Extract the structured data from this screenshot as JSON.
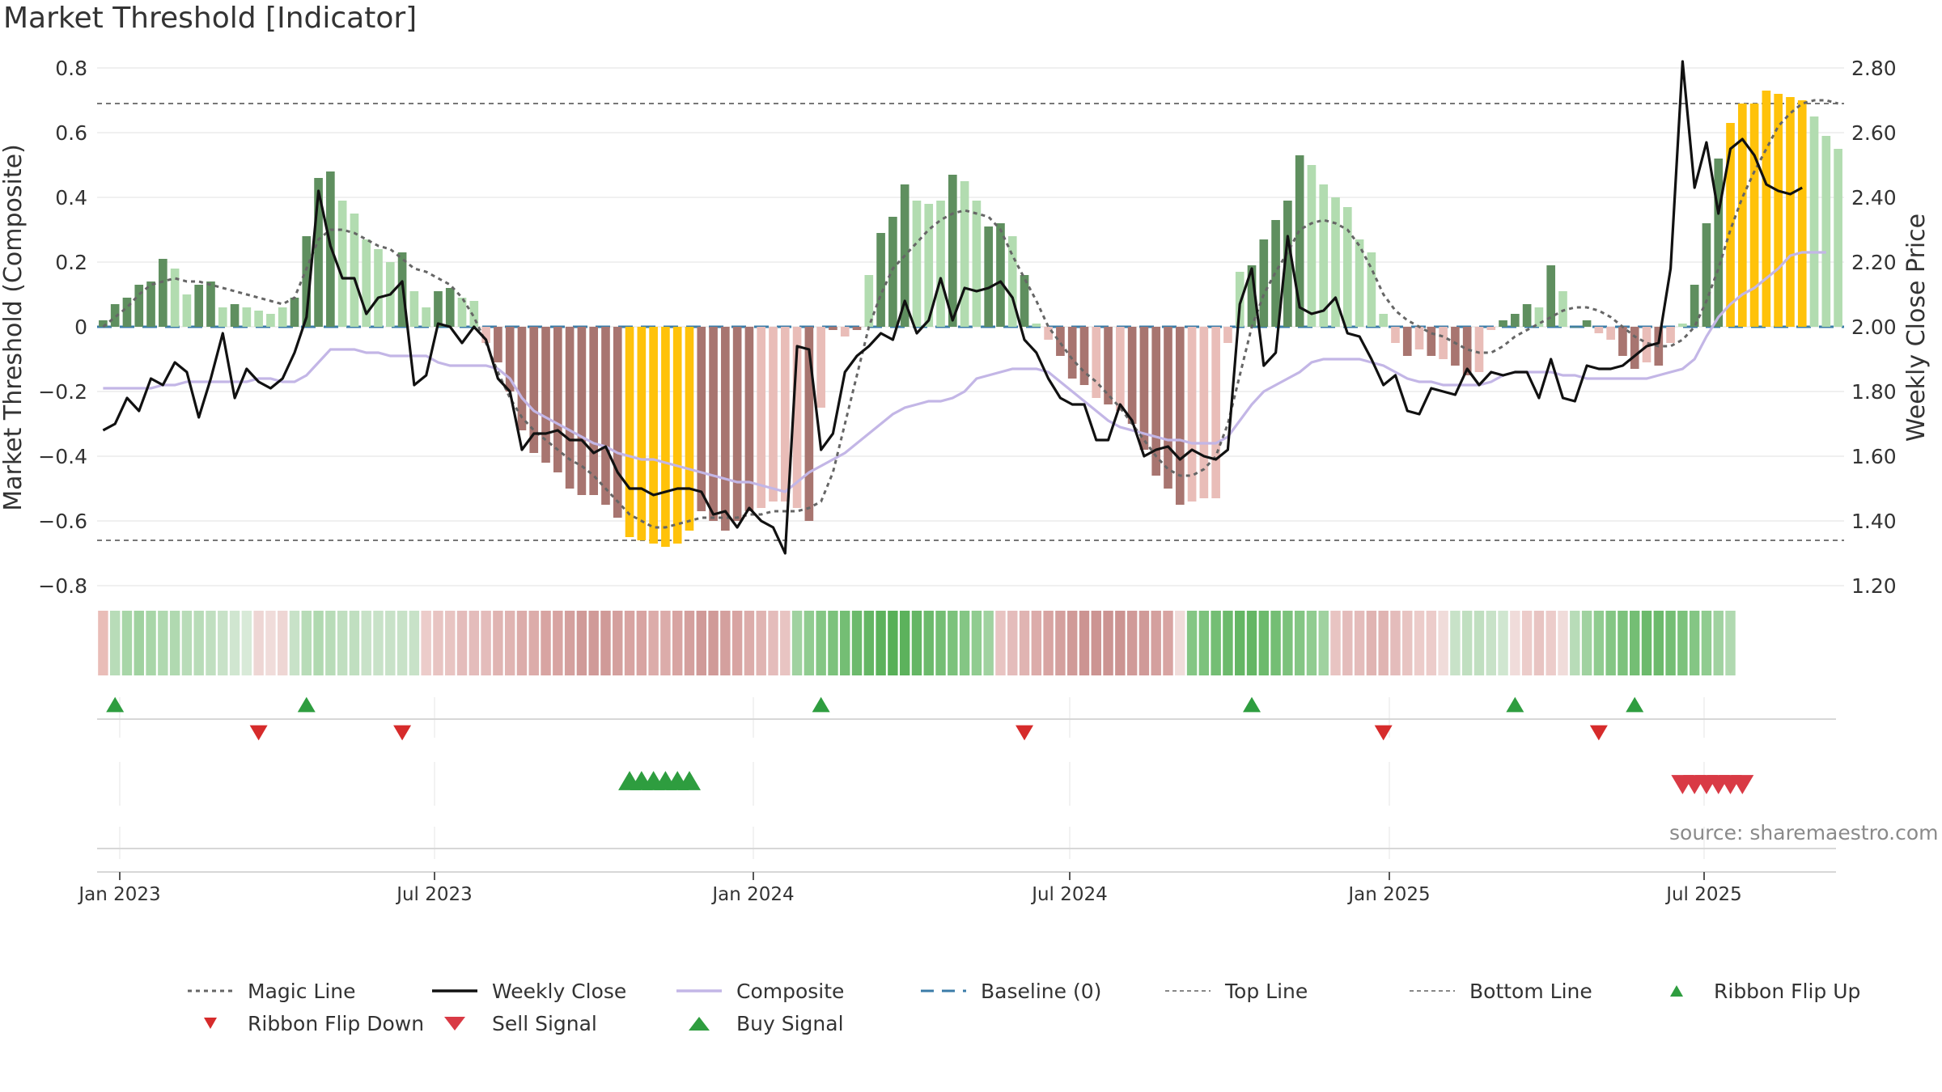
{
  "title": "Market Threshold [Indicator]",
  "source": "source: sharemaestro.com",
  "colors": {
    "pos_strong": "#5f8f5f",
    "pos_light": "#b2dcb0",
    "neg_strong": "#a87570",
    "neg_light": "#e9bdb8",
    "extreme": "#ffc20a",
    "close": "#111111",
    "composite": "#c3b6e6",
    "magic": "#666666",
    "baseline": "#3b7ca8",
    "ribbon_up": "#2e9d3f",
    "ribbon_down": "#d62b2b",
    "buy": "#2e9d3f",
    "sell": "#d93a45"
  },
  "chart_data": {
    "type": "bar",
    "title": "Market Threshold [Indicator]",
    "ylabel_left": "Market Threshold (Composite)",
    "ylabel_right": "Weekly Close Price",
    "ylim_left": [
      -0.8,
      0.8
    ],
    "ylim_right": [
      1.2,
      2.9
    ],
    "left_ticks": [
      "0.8",
      "0.6",
      "0.4",
      "0.2",
      "0",
      "−0.2",
      "−0.4",
      "−0.6",
      "−0.8"
    ],
    "right_ticks": [
      "2.80",
      "2.60",
      "2.40",
      "2.20",
      "2.00",
      "1.80",
      "1.60",
      "1.40",
      "1.20"
    ],
    "x_ticks": [
      "Jan 2023",
      "Jul 2023",
      "Jan 2024",
      "Jul 2024",
      "Jan 2025",
      "Jul 2025"
    ],
    "top_line": 0.69,
    "bottom_line": -0.66,
    "baseline": 0,
    "magnitude": [
      0.02,
      0.07,
      0.09,
      0.13,
      0.14,
      0.21,
      0.18,
      0.1,
      0.13,
      0.14,
      0.06,
      0.07,
      0.06,
      0.05,
      0.04,
      0.06,
      0.09,
      0.28,
      0.46,
      0.48,
      0.39,
      0.35,
      0.27,
      0.24,
      0.2,
      0.23,
      0.11,
      0.06,
      0.11,
      0.12,
      0.09,
      0.08,
      -0.05,
      -0.11,
      -0.2,
      -0.32,
      -0.39,
      -0.42,
      -0.45,
      -0.5,
      -0.52,
      -0.52,
      -0.55,
      -0.59,
      -0.65,
      -0.66,
      -0.67,
      -0.68,
      -0.67,
      -0.63,
      -0.57,
      -0.6,
      -0.63,
      -0.6,
      -0.57,
      -0.56,
      -0.54,
      -0.54,
      -0.56,
      -0.6,
      -0.25,
      -0.01,
      -0.03,
      -0.01,
      0.16,
      0.29,
      0.34,
      0.44,
      0.39,
      0.38,
      0.39,
      0.47,
      0.45,
      0.39,
      0.31,
      0.32,
      0.28,
      0.16,
      0.01,
      -0.04,
      -0.09,
      -0.16,
      -0.18,
      -0.22,
      -0.24,
      -0.26,
      -0.3,
      -0.38,
      -0.46,
      -0.5,
      -0.55,
      -0.54,
      -0.53,
      -0.53,
      -0.05,
      0.17,
      0.19,
      0.27,
      0.33,
      0.39,
      0.53,
      0.5,
      0.44,
      0.4,
      0.37,
      0.27,
      0.23,
      0.04,
      -0.05,
      -0.09,
      -0.07,
      -0.09,
      -0.1,
      -0.12,
      -0.15,
      -0.14,
      -0.01,
      0.02,
      0.04,
      0.07,
      0.06,
      0.19,
      0.11,
      0.0,
      0.02,
      -0.02,
      -0.04,
      -0.09,
      -0.13,
      -0.11,
      -0.12,
      -0.05,
      0.01,
      0.13,
      0.32,
      0.52,
      0.63,
      0.69,
      0.69,
      0.73,
      0.72,
      0.71,
      0.7,
      0.65,
      0.59,
      0.55
    ],
    "bar_category": [
      "ps",
      "ps",
      "ps",
      "ps",
      "ps",
      "ps",
      "pl",
      "pl",
      "ps",
      "ps",
      "pl",
      "ps",
      "pl",
      "pl",
      "pl",
      "pl",
      "ps",
      "ps",
      "ps",
      "ps",
      "pl",
      "pl",
      "pl",
      "pl",
      "pl",
      "ps",
      "pl",
      "pl",
      "ps",
      "ps",
      "pl",
      "pl",
      "nl",
      "ns",
      "ns",
      "ns",
      "ns",
      "ns",
      "ns",
      "ns",
      "ns",
      "ns",
      "ns",
      "ns",
      "ex",
      "ex",
      "ex",
      "ex",
      "ex",
      "ex",
      "ns",
      "ns",
      "ns",
      "ns",
      "ns",
      "nl",
      "nl",
      "nl",
      "nl",
      "ns",
      "nl",
      "ns",
      "nl",
      "ns",
      "pl",
      "ps",
      "ps",
      "ps",
      "pl",
      "pl",
      "pl",
      "ps",
      "pl",
      "pl",
      "ps",
      "ps",
      "pl",
      "ps",
      "pl",
      "nl",
      "ns",
      "ns",
      "ns",
      "nl",
      "ns",
      "nl",
      "ns",
      "ns",
      "ns",
      "ns",
      "ns",
      "nl",
      "nl",
      "nl",
      "nl",
      "pl",
      "ps",
      "ps",
      "ps",
      "ps",
      "ps",
      "pl",
      "pl",
      "pl",
      "pl",
      "pl",
      "pl",
      "pl",
      "nl",
      "ns",
      "nl",
      "ns",
      "nl",
      "ns",
      "ns",
      "nl",
      "nl",
      "ps",
      "ps",
      "ps",
      "pl",
      "ps",
      "pl",
      "ps",
      "ps",
      "nl",
      "nl",
      "ns",
      "ns",
      "nl",
      "ns",
      "nl",
      "pl",
      "ps",
      "ps",
      "ps",
      "ex",
      "ex",
      "ex",
      "ex",
      "ex",
      "ex",
      "ex",
      "pl",
      "pl",
      "pl"
    ],
    "series": [
      {
        "name": "Magic Line",
        "values": [
          0.0,
          0.03,
          0.06,
          0.1,
          0.13,
          0.14,
          0.15,
          0.14,
          0.14,
          0.13,
          0.12,
          0.11,
          0.1,
          0.09,
          0.08,
          0.07,
          0.09,
          0.18,
          0.27,
          0.3,
          0.3,
          0.29,
          0.27,
          0.25,
          0.24,
          0.21,
          0.18,
          0.17,
          0.15,
          0.13,
          0.09,
          0.03,
          -0.05,
          -0.14,
          -0.22,
          -0.28,
          -0.32,
          -0.35,
          -0.38,
          -0.41,
          -0.43,
          -0.46,
          -0.5,
          -0.54,
          -0.58,
          -0.6,
          -0.62,
          -0.62,
          -0.61,
          -0.6,
          -0.59,
          -0.59,
          -0.59,
          -0.59,
          -0.58,
          -0.58,
          -0.57,
          -0.57,
          -0.57,
          -0.56,
          -0.54,
          -0.45,
          -0.3,
          -0.15,
          0.0,
          0.1,
          0.18,
          0.22,
          0.26,
          0.3,
          0.33,
          0.35,
          0.36,
          0.35,
          0.34,
          0.3,
          0.22,
          0.15,
          0.08,
          0.0,
          -0.05,
          -0.1,
          -0.14,
          -0.17,
          -0.21,
          -0.25,
          -0.3,
          -0.35,
          -0.4,
          -0.44,
          -0.46,
          -0.46,
          -0.44,
          -0.4,
          -0.3,
          -0.15,
          0.0,
          0.1,
          0.17,
          0.23,
          0.3,
          0.32,
          0.33,
          0.32,
          0.3,
          0.25,
          0.18,
          0.1,
          0.05,
          0.02,
          0.0,
          -0.02,
          -0.03,
          -0.05,
          -0.07,
          -0.08,
          -0.08,
          -0.06,
          -0.03,
          -0.01,
          0.01,
          0.03,
          0.05,
          0.06,
          0.06,
          0.05,
          0.03,
          0.0,
          -0.03,
          -0.05,
          -0.06,
          -0.06,
          -0.04,
          0.0,
          0.08,
          0.18,
          0.3,
          0.4,
          0.48,
          0.55,
          0.62,
          0.66,
          0.69,
          0.7,
          0.7,
          0.69
        ]
      },
      {
        "name": "Weekly Close",
        "values": [
          1.68,
          1.7,
          1.78,
          1.74,
          1.84,
          1.82,
          1.89,
          1.86,
          1.72,
          1.84,
          1.98,
          1.78,
          1.87,
          1.83,
          1.81,
          1.84,
          1.92,
          2.03,
          2.42,
          2.25,
          2.15,
          2.15,
          2.04,
          2.09,
          2.1,
          2.14,
          1.82,
          1.85,
          2.01,
          2.0,
          1.95,
          2.0,
          1.96,
          1.84,
          1.8,
          1.62,
          1.67,
          1.67,
          1.68,
          1.65,
          1.65,
          1.61,
          1.63,
          1.55,
          1.5,
          1.5,
          1.48,
          1.49,
          1.5,
          1.5,
          1.49,
          1.42,
          1.43,
          1.38,
          1.44,
          1.4,
          1.38,
          1.3,
          1.94,
          1.93,
          1.62,
          1.67,
          1.86,
          1.91,
          1.94,
          1.98,
          1.96,
          2.08,
          1.98,
          2.02,
          2.15,
          2.02,
          2.12,
          2.11,
          2.12,
          2.14,
          2.09,
          1.96,
          1.92,
          1.84,
          1.78,
          1.76,
          1.76,
          1.65,
          1.65,
          1.76,
          1.71,
          1.6,
          1.62,
          1.63,
          1.59,
          1.62,
          1.6,
          1.59,
          1.62,
          2.07,
          2.18,
          1.88,
          1.92,
          2.28,
          2.06,
          2.04,
          2.05,
          2.09,
          1.98,
          1.97,
          1.9,
          1.82,
          1.85,
          1.74,
          1.73,
          1.81,
          1.8,
          1.79,
          1.87,
          1.82,
          1.86,
          1.85,
          1.86,
          1.86,
          1.78,
          1.9,
          1.78,
          1.77,
          1.88,
          1.87,
          1.87,
          1.88,
          1.91,
          1.94,
          1.95,
          2.18,
          2.82,
          2.43,
          2.57,
          2.35,
          2.55,
          2.58,
          2.53,
          2.44,
          2.42,
          2.41,
          2.43
        ]
      },
      {
        "name": "Composite",
        "values": [
          -0.19,
          -0.19,
          -0.19,
          -0.19,
          -0.19,
          -0.18,
          -0.18,
          -0.17,
          -0.17,
          -0.17,
          -0.17,
          -0.17,
          -0.17,
          -0.16,
          -0.16,
          -0.17,
          -0.17,
          -0.15,
          -0.11,
          -0.07,
          -0.07,
          -0.07,
          -0.08,
          -0.08,
          -0.09,
          -0.09,
          -0.09,
          -0.09,
          -0.11,
          -0.12,
          -0.12,
          -0.12,
          -0.12,
          -0.13,
          -0.16,
          -0.22,
          -0.26,
          -0.28,
          -0.3,
          -0.32,
          -0.34,
          -0.36,
          -0.37,
          -0.39,
          -0.4,
          -0.41,
          -0.41,
          -0.42,
          -0.43,
          -0.44,
          -0.45,
          -0.46,
          -0.47,
          -0.48,
          -0.48,
          -0.49,
          -0.5,
          -0.51,
          -0.48,
          -0.45,
          -0.43,
          -0.41,
          -0.39,
          -0.36,
          -0.33,
          -0.3,
          -0.27,
          -0.25,
          -0.24,
          -0.23,
          -0.23,
          -0.22,
          -0.2,
          -0.16,
          -0.15,
          -0.14,
          -0.13,
          -0.13,
          -0.13,
          -0.14,
          -0.17,
          -0.2,
          -0.23,
          -0.26,
          -0.29,
          -0.31,
          -0.32,
          -0.33,
          -0.34,
          -0.35,
          -0.35,
          -0.36,
          -0.36,
          -0.36,
          -0.34,
          -0.29,
          -0.24,
          -0.2,
          -0.18,
          -0.16,
          -0.14,
          -0.11,
          -0.1,
          -0.1,
          -0.1,
          -0.1,
          -0.11,
          -0.12,
          -0.14,
          -0.16,
          -0.17,
          -0.17,
          -0.18,
          -0.18,
          -0.18,
          -0.18,
          -0.17,
          -0.15,
          -0.14,
          -0.14,
          -0.14,
          -0.14,
          -0.15,
          -0.15,
          -0.16,
          -0.16,
          -0.16,
          -0.16,
          -0.16,
          -0.16,
          -0.15,
          -0.14,
          -0.13,
          -0.1,
          -0.03,
          0.03,
          0.07,
          0.1,
          0.12,
          0.15,
          0.18,
          0.22,
          0.23,
          0.23,
          0.23
        ]
      }
    ],
    "ribbon_shades": [
      "#e9bdb8",
      "#b8dcb8",
      "#a8d6a8",
      "#a0d2a0",
      "#a8d6a8",
      "#b0d9b0",
      "#b0d9b0",
      "#b8dcb8",
      "#b8dcb8",
      "#c0dfc0",
      "#c8e2c8",
      "#d0e6d0",
      "#d8ead8",
      "#eed6d4",
      "#f0dcda",
      "#eed6d4",
      "#c8e2c8",
      "#b8dcb8",
      "#b0d9b0",
      "#b8dcb8",
      "#c0dfc0",
      "#c0dfc0",
      "#c8e2c8",
      "#c8e2c8",
      "#c8e2c8",
      "#c8e2c8",
      "#c8e2c8",
      "#ecccca",
      "#e8c4c2",
      "#e8c4c2",
      "#e4bcbb",
      "#e4bcbb",
      "#e4bcbb",
      "#e0b4b2",
      "#e0b4b2",
      "#dcacaa",
      "#dcacaa",
      "#d8a4a2",
      "#d8a4a2",
      "#d4a09e",
      "#d09a98",
      "#d09a98",
      "#d09a98",
      "#d4a09e",
      "#d8a4a2",
      "#d8a4a2",
      "#dcacaa",
      "#dcacaa",
      "#d8a4a2",
      "#d4a09e",
      "#d09a98",
      "#d09a98",
      "#d4a09e",
      "#d8a4a2",
      "#dcacaa",
      "#e0b4b2",
      "#e4bcbb",
      "#e8c4c2",
      "#a0d2a0",
      "#90cc90",
      "#84c684",
      "#7cc27c",
      "#74be74",
      "#6cba6c",
      "#64b664",
      "#5cb25c",
      "#58b058",
      "#5cb25c",
      "#64b664",
      "#6cba6c",
      "#74be74",
      "#7cc27c",
      "#84c684",
      "#90cc90",
      "#a0d2a0",
      "#e8c4c2",
      "#e4bcbb",
      "#e0b4b2",
      "#dcacaa",
      "#d8a4a2",
      "#d4a09e",
      "#d09a98",
      "#cc9492",
      "#cc9492",
      "#cc9492",
      "#cc9492",
      "#d09a98",
      "#d09a98",
      "#d4a09e",
      "#d8a4a2",
      "#f0dcda",
      "#84c684",
      "#7cc27c",
      "#74be74",
      "#6cba6c",
      "#64b664",
      "#64b664",
      "#6cba6c",
      "#74be74",
      "#7cc27c",
      "#84c684",
      "#90cc90",
      "#a0d2a0",
      "#e8c4c2",
      "#e4bcbb",
      "#e4bcbb",
      "#e0b4b2",
      "#e0b4b2",
      "#e4bcbb",
      "#e8c4c2",
      "#ecccca",
      "#ecccca",
      "#f0dcda",
      "#c8e2c8",
      "#c0dfc0",
      "#c0dfc0",
      "#c8e2c8",
      "#d0e6d0",
      "#f0dcda",
      "#ecccca",
      "#e8c4c2",
      "#ecccca",
      "#f0dcda",
      "#b8dcb8",
      "#a0d2a0",
      "#90cc90",
      "#84c684",
      "#7cc27c",
      "#74be74",
      "#6cba6c",
      "#6cba6c",
      "#74be74",
      "#7cc27c",
      "#84c684",
      "#90cc90",
      "#a0d2a0",
      "#b0d9b0"
    ],
    "ribbon_flip_up": [
      1,
      17,
      60,
      96,
      118,
      128
    ],
    "ribbon_flip_down": [
      13,
      25,
      77,
      107,
      125
    ],
    "buy_signal": [
      44,
      45,
      46,
      47,
      48,
      49
    ],
    "sell_signal": [
      132,
      133,
      134,
      135,
      136,
      137
    ],
    "legend": [
      {
        "label": "Magic Line",
        "style": "dotted"
      },
      {
        "label": "Weekly Close",
        "style": "solid"
      },
      {
        "label": "Composite",
        "style": "composite"
      },
      {
        "label": "Baseline (0)",
        "style": "dashed"
      },
      {
        "label": "Top Line",
        "style": "fine-dotted"
      },
      {
        "label": "Bottom Line",
        "style": "fine-dotted"
      },
      {
        "label": "Ribbon Flip Up",
        "style": "tri-up-small"
      },
      {
        "label": "Ribbon Flip Down",
        "style": "tri-down-small"
      },
      {
        "label": "Sell Signal",
        "style": "tri-down-large"
      },
      {
        "label": "Buy Signal",
        "style": "tri-up-large"
      }
    ],
    "grid": true,
    "legend_position": "bottom"
  }
}
